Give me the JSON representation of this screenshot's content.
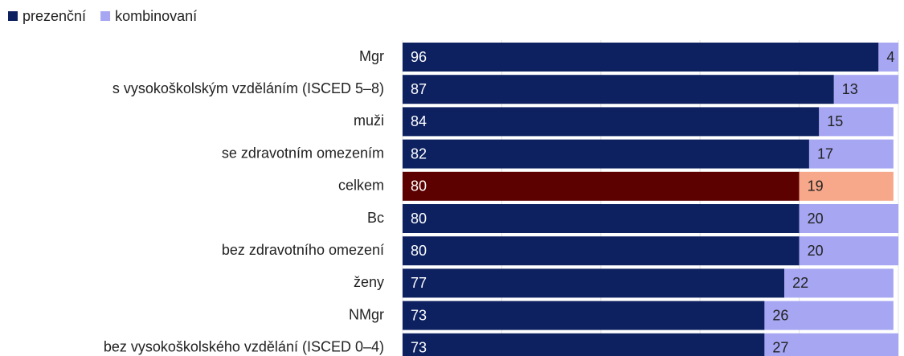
{
  "chart_data": {
    "type": "stacked_bar_horizontal",
    "categories": [
      "Mgr",
      "s vysokoškolským vzděláním (ISCED 5–8)",
      "muži",
      "se zdravotním omezením",
      "celkem",
      "Bc",
      "bez zdravotního omezení",
      "ženy",
      "NMgr",
      "bez vysokoškolského vzdělání (ISCED 0–4)"
    ],
    "series": [
      {
        "name": "prezenční",
        "color": "#0d2160",
        "values": [
          96,
          87,
          84,
          82,
          80,
          80,
          80,
          77,
          73,
          73
        ],
        "colors": [
          "#0d2160",
          "#0d2160",
          "#0d2160",
          "#0d2160",
          "#5c0000",
          "#0d2160",
          "#0d2160",
          "#0d2160",
          "#0d2160",
          "#0d2160"
        ]
      },
      {
        "name": "kombinovaní",
        "color": "#a6a6f2",
        "values": [
          4,
          13,
          15,
          17,
          19,
          20,
          20,
          22,
          26,
          27
        ],
        "colors": [
          "#a6a6f2",
          "#a6a6f2",
          "#a6a6f2",
          "#a6a6f2",
          "#f7a88a",
          "#a6a6f2",
          "#a6a6f2",
          "#a6a6f2",
          "#a6a6f2",
          "#a6a6f2"
        ]
      }
    ],
    "xlim": [
      0,
      100
    ],
    "xticks": [
      0,
      20,
      40,
      60,
      80,
      100
    ],
    "grid": true,
    "legend": "top-left"
  }
}
